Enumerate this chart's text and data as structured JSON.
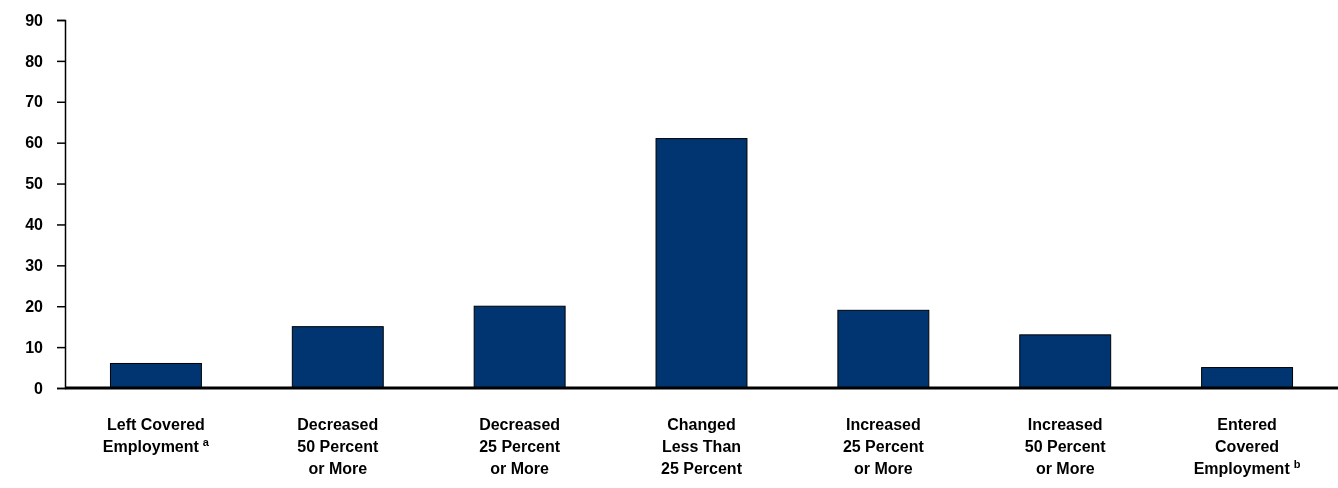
{
  "chart_data": {
    "type": "bar",
    "categories": [
      "Left Covered\nEmployment$^{a}$",
      "Decreased\n50 Percent\nor More",
      "Decreased\n25 Percent\nor More",
      "Changed\nLess Than\n25 Percent",
      "Increased\n25 Percent\nor More",
      "Increased\n50 Percent\nor More",
      "Entered\nCovered\nEmployment$^{b}$"
    ],
    "values": [
      6,
      15,
      20,
      61,
      19,
      13,
      5
    ],
    "color": "#003572",
    "ylim": [
      0,
      90
    ],
    "yticks": [
      0,
      10,
      20,
      30,
      40,
      50,
      60,
      70,
      80,
      90
    ],
    "grid": false
  }
}
